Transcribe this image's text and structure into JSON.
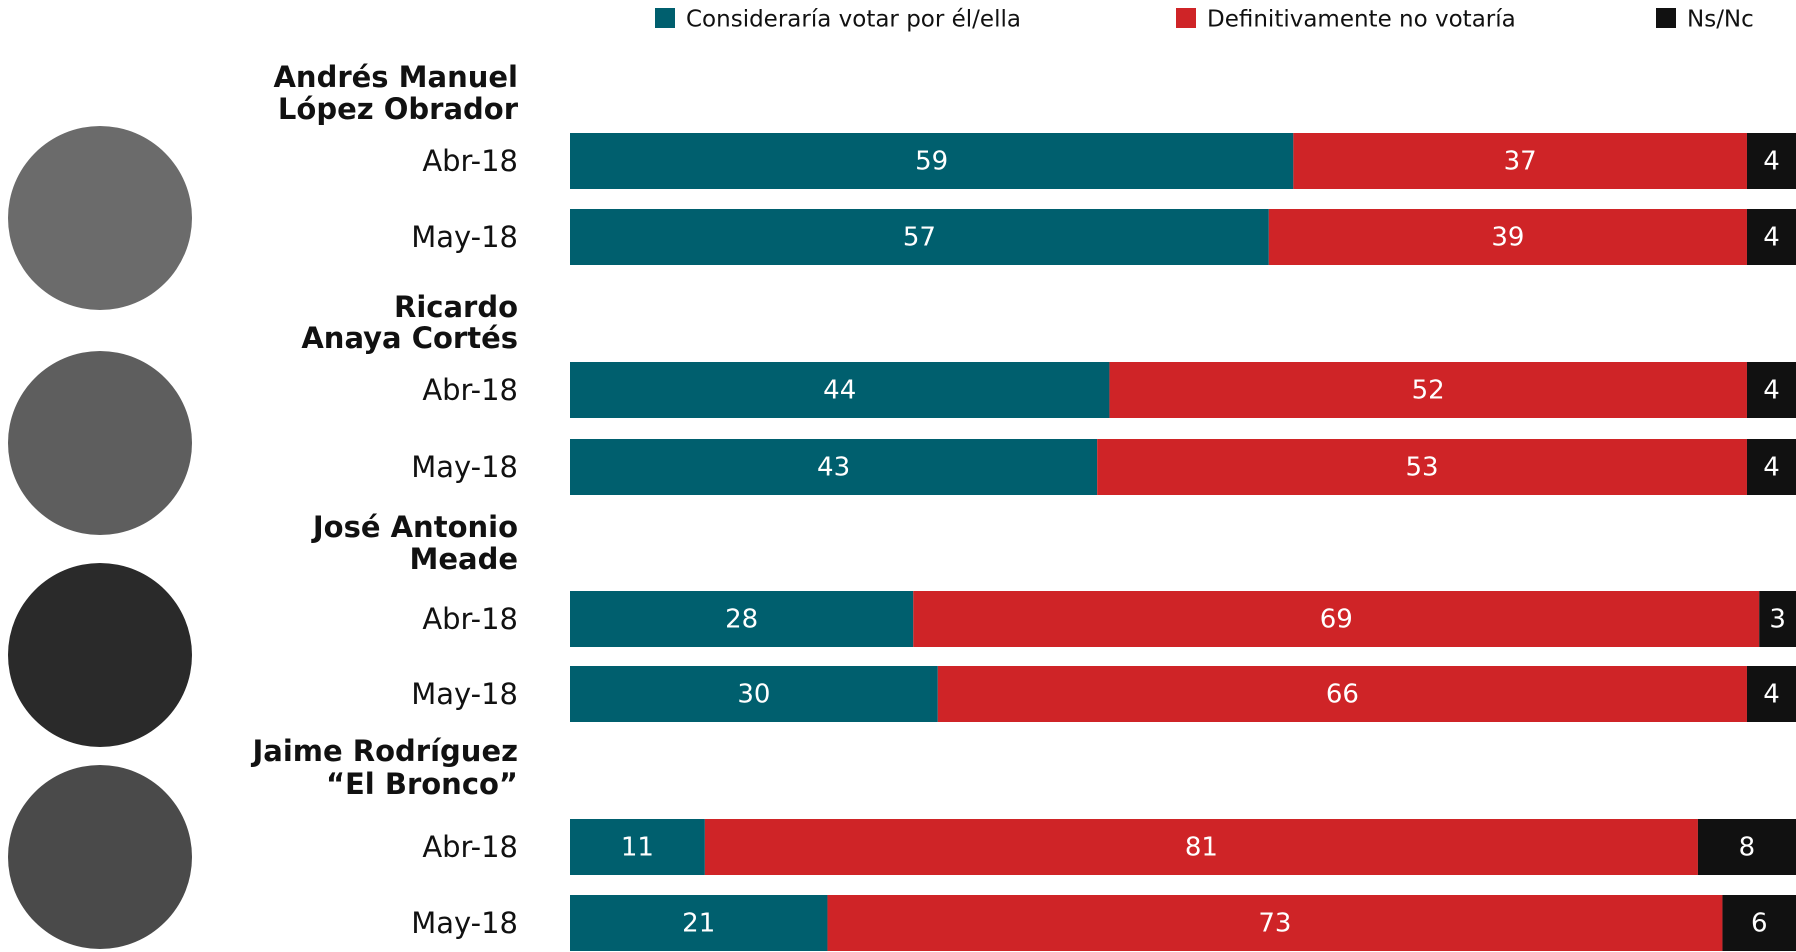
{
  "chart_data": {
    "type": "stacked-bar",
    "groups": [
      [
        "Andrés Manuel",
        "López Obrador"
      ],
      [
        "Ricardo",
        "Anaya Cortés"
      ],
      [
        "José Antonio",
        "Meade"
      ],
      [
        "Jaime Rodríguez",
        "“El Bronco”"
      ]
    ],
    "categories": [
      "Abr-18",
      "May-18",
      "Abr-18",
      "May-18",
      "Abr-18",
      "May-18",
      "Abr-18",
      "May-18"
    ],
    "xlim": [
      0,
      100
    ],
    "series": [
      {
        "name": "Consideraría votar por él/ella",
        "color": "#005f6e",
        "values": [
          59,
          57,
          44,
          43,
          28,
          30,
          11,
          21
        ]
      },
      {
        "name": "Definitivamente no votaría",
        "color": "#cf2427",
        "values": [
          37,
          39,
          52,
          53,
          69,
          66,
          81,
          73
        ]
      },
      {
        "name": "Ns/Nc",
        "color": "#111111",
        "values": [
          4,
          4,
          4,
          4,
          3,
          4,
          8,
          6
        ]
      }
    ]
  }
}
